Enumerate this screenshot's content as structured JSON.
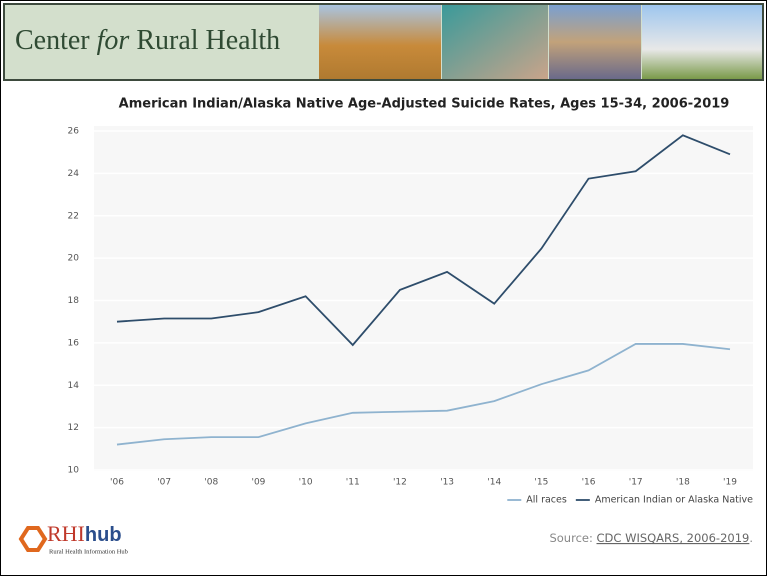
{
  "header": {
    "title_start": "Center",
    "title_italic": "for",
    "title_end": "Rural Health"
  },
  "chart_data": {
    "type": "line",
    "title": "American Indian/Alaska Native Age-Adjusted Suicide Rates, Ages 15-34, 2006-2019",
    "categories": [
      "'06",
      "'07",
      "'08",
      "'09",
      "'10",
      "'11",
      "'12",
      "'13",
      "'14",
      "'15",
      "'16",
      "'17",
      "'18",
      "'19"
    ],
    "series": [
      {
        "name": "All races",
        "color": "#8fb3cf",
        "values": [
          11.2,
          11.45,
          11.55,
          11.55,
          12.2,
          12.7,
          12.75,
          12.8,
          13.25,
          14.05,
          14.7,
          15.95,
          15.95,
          15.7
        ]
      },
      {
        "name": "American Indian or Alaska Native",
        "color": "#2e4d6b",
        "values": [
          17.0,
          17.15,
          17.15,
          17.45,
          18.2,
          15.9,
          18.5,
          19.35,
          17.85,
          20.45,
          23.75,
          24.1,
          25.8,
          24.9
        ]
      }
    ],
    "ylim": [
      10,
      26
    ],
    "yticks": [
      10,
      12,
      14,
      16,
      18,
      20,
      22,
      24,
      26
    ],
    "grid": true,
    "legend": "bottom-right"
  },
  "footer": {
    "logo_red": "RHI",
    "logo_blue": "hub",
    "logo_sub": "Rural Health Information Hub",
    "source_label": "Source:",
    "source_link": "CDC WISQARS, 2006-2019",
    "source_end": "."
  }
}
